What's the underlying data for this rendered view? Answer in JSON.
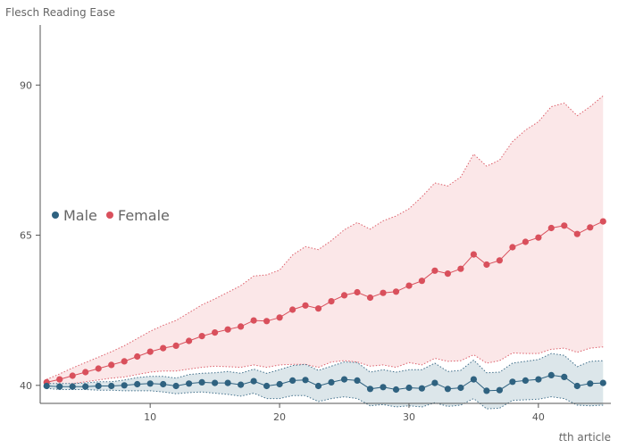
{
  "chart_data": {
    "type": "line",
    "title": "",
    "ylabel": "Flesch Reading Ease",
    "xlabel": "t th article",
    "xlabel_parts": {
      "italic": "t",
      "rest": "th article"
    },
    "xlim": [
      1.5,
      45.6
    ],
    "ylim": [
      37,
      100
    ],
    "xticks": [
      10,
      20,
      30,
      40
    ],
    "yticks": [
      40,
      65,
      90
    ],
    "grid": false,
    "legend": "left",
    "x": [
      2,
      3,
      4,
      5,
      6,
      7,
      8,
      9,
      10,
      11,
      12,
      13,
      14,
      15,
      16,
      17,
      18,
      19,
      20,
      21,
      22,
      23,
      24,
      25,
      26,
      27,
      28,
      29,
      30,
      31,
      32,
      33,
      34,
      35,
      36,
      37,
      38,
      39,
      40,
      41,
      42,
      43,
      44,
      45
    ],
    "series": [
      {
        "name": "Male",
        "color": "#2f6280",
        "band_color": "#dce6ea",
        "values": [
          39.9,
          39.8,
          39.8,
          39.8,
          39.9,
          39.9,
          40.0,
          40.2,
          40.3,
          40.2,
          39.9,
          40.3,
          40.5,
          40.4,
          40.4,
          40.1,
          40.7,
          39.9,
          40.2,
          40.8,
          40.9,
          39.9,
          40.5,
          41.0,
          40.8,
          39.4,
          39.7,
          39.3,
          39.6,
          39.5,
          40.4,
          39.4,
          39.6,
          41.0,
          39.1,
          39.2,
          40.6,
          40.8,
          41.0,
          41.7,
          41.4,
          39.9,
          40.3,
          40.4
        ],
        "lower": [
          39.5,
          39.3,
          39.3,
          39.3,
          39.2,
          39.2,
          39.1,
          39.1,
          39.1,
          38.9,
          38.6,
          38.8,
          38.9,
          38.7,
          38.5,
          38.2,
          38.7,
          37.8,
          37.8,
          38.3,
          38.3,
          37.3,
          37.8,
          38.1,
          37.8,
          36.6,
          36.8,
          36.4,
          36.6,
          36.4,
          37.1,
          36.5,
          36.7,
          37.8,
          36.1,
          36.2,
          37.5,
          37.6,
          37.7,
          38.1,
          37.8,
          36.7,
          36.6,
          36.7
        ],
        "upper": [
          40.3,
          40.3,
          40.3,
          40.4,
          40.6,
          40.6,
          40.9,
          41.3,
          41.5,
          41.5,
          41.2,
          41.8,
          42.0,
          42.1,
          42.3,
          42.0,
          42.7,
          42.0,
          42.6,
          43.3,
          43.5,
          42.5,
          43.2,
          43.9,
          43.8,
          42.2,
          42.6,
          42.2,
          42.6,
          42.6,
          43.7,
          42.3,
          42.5,
          44.2,
          42.1,
          42.2,
          43.7,
          44.0,
          44.3,
          45.3,
          45.0,
          43.1,
          44.0,
          44.1
        ]
      },
      {
        "name": "Female",
        "color": "#d9505c",
        "band_color": "#fbe7e8",
        "values": [
          40.5,
          41.0,
          41.6,
          42.2,
          42.8,
          43.4,
          44.0,
          44.8,
          45.6,
          46.2,
          46.6,
          47.4,
          48.2,
          48.8,
          49.3,
          49.8,
          50.8,
          50.7,
          51.3,
          52.6,
          53.3,
          52.8,
          54.0,
          55.0,
          55.5,
          54.6,
          55.4,
          55.6,
          56.6,
          57.4,
          59.1,
          58.6,
          59.4,
          61.8,
          60.1,
          60.8,
          63.0,
          63.9,
          64.6,
          66.2,
          66.6,
          65.2,
          66.3,
          67.3
        ],
        "lower": [
          40.0,
          40.1,
          40.3,
          40.6,
          40.9,
          41.2,
          41.4,
          41.8,
          42.2,
          42.4,
          42.4,
          42.7,
          43.0,
          43.2,
          43.1,
          43.0,
          43.4,
          43.0,
          43.4,
          43.5,
          43.5,
          43.0,
          43.9,
          44.1,
          43.9,
          43.2,
          43.4,
          43.0,
          43.8,
          43.4,
          44.5,
          44.0,
          44.1,
          45.1,
          43.7,
          44.1,
          45.4,
          45.3,
          45.3,
          46.0,
          46.2,
          45.5,
          46.2,
          46.4
        ],
        "upper": [
          41.0,
          41.9,
          42.9,
          43.8,
          44.7,
          45.6,
          46.6,
          47.8,
          49.0,
          50.0,
          50.8,
          52.1,
          53.4,
          54.4,
          55.5,
          56.6,
          58.2,
          58.4,
          59.2,
          61.7,
          63.1,
          62.6,
          64.1,
          65.9,
          67.1,
          66.0,
          67.4,
          68.2,
          69.4,
          71.4,
          73.7,
          73.2,
          74.7,
          78.5,
          76.5,
          77.5,
          80.6,
          82.5,
          83.9,
          86.4,
          87.0,
          84.9,
          86.4,
          88.2
        ]
      }
    ]
  }
}
